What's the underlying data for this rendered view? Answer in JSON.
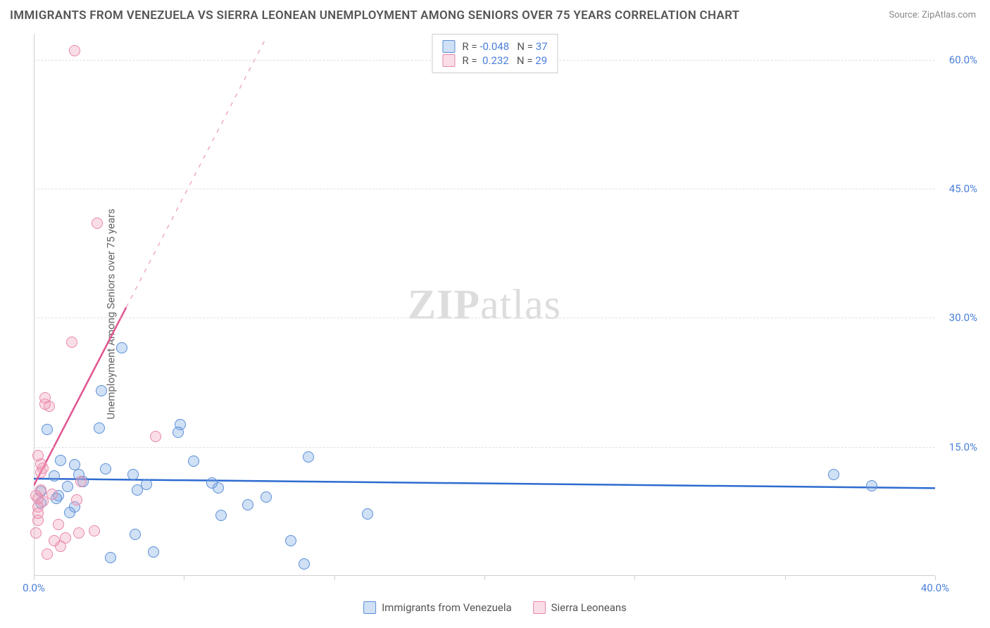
{
  "title": "IMMIGRANTS FROM VENEZUELA VS SIERRA LEONEAN UNEMPLOYMENT AMONG SENIORS OVER 75 YEARS CORRELATION CHART",
  "source_prefix": "Source: ",
  "source_name": "ZipAtlas.com",
  "ylabel": "Unemployment Among Seniors over 75 years",
  "watermark_bold": "ZIP",
  "watermark_rest": "atlas",
  "chart": {
    "type": "scatter",
    "xlim": [
      0,
      40
    ],
    "ylim": [
      0,
      63
    ],
    "xtick_positions": [
      0,
      6.67,
      13.33,
      20,
      26.67,
      33.33,
      40
    ],
    "xtick_labels": [
      "0.0%",
      "",
      "",
      "",
      "",
      "",
      "40.0%"
    ],
    "ytick_positions": [
      15,
      30,
      45,
      60
    ],
    "ytick_labels": [
      "15.0%",
      "30.0%",
      "45.0%",
      "60.0%"
    ],
    "grid_color": "#e0e0e0",
    "background_color": "#ffffff",
    "axis_color": "#d0d0d0",
    "label_color": "#4a7fd8",
    "marker_radius": 8,
    "marker_stroke_width": 1.5,
    "series": [
      {
        "key": "venezuela",
        "label": "Immigrants from Venezuela",
        "fill": "rgba(120,165,225,0.35)",
        "stroke": "#5b8fd8",
        "R": "-0.048",
        "N": "37",
        "trend": {
          "x1": 0,
          "y1": 11.3,
          "x2": 40,
          "y2": 10.2,
          "stroke": "#2e6bd0",
          "width": 2.5,
          "dash": ""
        },
        "points": [
          [
            35.5,
            11.8
          ],
          [
            37.2,
            10.5
          ],
          [
            14.8,
            7.2
          ],
          [
            12.2,
            13.8
          ],
          [
            12.0,
            1.4
          ],
          [
            11.4,
            4.1
          ],
          [
            10.3,
            9.2
          ],
          [
            9.5,
            8.3
          ],
          [
            8.3,
            7.0
          ],
          [
            8.2,
            10.2
          ],
          [
            7.9,
            10.8
          ],
          [
            7.1,
            13.3
          ],
          [
            6.5,
            17.6
          ],
          [
            6.4,
            16.7
          ],
          [
            5.3,
            2.8
          ],
          [
            5.0,
            10.6
          ],
          [
            4.6,
            10.0
          ],
          [
            4.5,
            4.8
          ],
          [
            4.4,
            11.8
          ],
          [
            3.9,
            26.5
          ],
          [
            3.4,
            2.1
          ],
          [
            3.2,
            12.4
          ],
          [
            3.0,
            21.5
          ],
          [
            2.9,
            17.2
          ],
          [
            2.2,
            11.0
          ],
          [
            2.0,
            11.8
          ],
          [
            1.8,
            12.9
          ],
          [
            1.8,
            8.0
          ],
          [
            1.6,
            7.4
          ],
          [
            1.5,
            10.4
          ],
          [
            1.2,
            13.4
          ],
          [
            1.1,
            9.3
          ],
          [
            1.0,
            9.0
          ],
          [
            0.9,
            11.6
          ],
          [
            0.6,
            17.0
          ],
          [
            0.3,
            8.5
          ],
          [
            0.3,
            9.8
          ]
        ]
      },
      {
        "key": "sierra",
        "label": "Sierra Leoneans",
        "fill": "rgba(240,160,185,0.35)",
        "stroke": "#e887a8",
        "R": "0.232",
        "N": "29",
        "trend_solid": {
          "x1": 0,
          "y1": 10.5,
          "x2": 4.1,
          "y2": 31.2,
          "stroke": "#e05590",
          "width": 2.5
        },
        "trend_dash": {
          "x1": 4.1,
          "y1": 31.2,
          "x2": 10.3,
          "y2": 62.5,
          "stroke": "rgba(224,85,144,0.5)",
          "width": 1.5
        },
        "points": [
          [
            1.8,
            61.0
          ],
          [
            2.8,
            41.0
          ],
          [
            5.4,
            16.2
          ],
          [
            2.7,
            5.2
          ],
          [
            2.1,
            11.0
          ],
          [
            2.0,
            5.0
          ],
          [
            1.9,
            8.8
          ],
          [
            1.7,
            27.2
          ],
          [
            1.4,
            4.4
          ],
          [
            1.2,
            3.4
          ],
          [
            1.1,
            6.0
          ],
          [
            0.9,
            4.1
          ],
          [
            0.8,
            9.5
          ],
          [
            0.7,
            19.7
          ],
          [
            0.6,
            2.5
          ],
          [
            0.5,
            20.0
          ],
          [
            0.5,
            20.7
          ],
          [
            0.4,
            8.7
          ],
          [
            0.4,
            12.5
          ],
          [
            0.3,
            12.0
          ],
          [
            0.3,
            13.0
          ],
          [
            0.3,
            10.0
          ],
          [
            0.2,
            14.0
          ],
          [
            0.2,
            8.0
          ],
          [
            0.2,
            9.0
          ],
          [
            0.2,
            6.5
          ],
          [
            0.2,
            7.3
          ],
          [
            0.1,
            9.3
          ],
          [
            0.1,
            5.0
          ]
        ]
      }
    ]
  }
}
